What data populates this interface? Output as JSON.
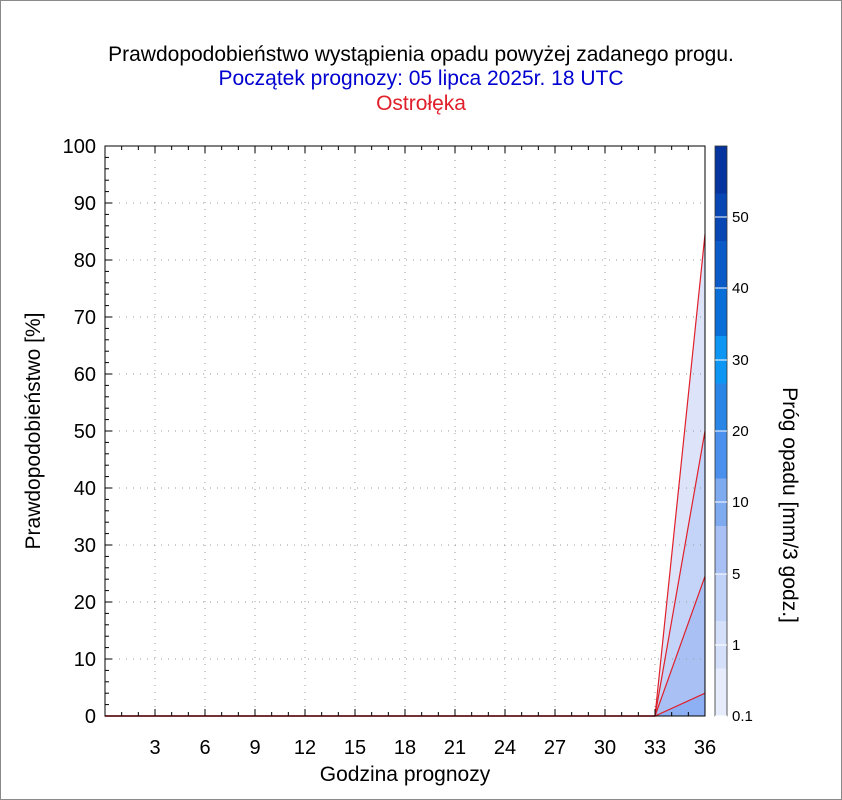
{
  "chart_data": {
    "type": "area",
    "title": "Prawdopodobieństwo wystąpienia opadu powyżej zadanego progu.",
    "subtitle": "Początek prognozy: 05 lipca 2025r. 18 UTC",
    "location": "Ostrołęka",
    "xlabel": "Godzina prognozy",
    "ylabel": "Prawdopodobieństwo [%]",
    "colorbar_label": "Próg opadu [mm/3 godz.]",
    "xlim": [
      0,
      36
    ],
    "ylim": [
      0,
      100
    ],
    "xticks": [
      3,
      6,
      9,
      12,
      15,
      18,
      21,
      24,
      27,
      30,
      33,
      36
    ],
    "yticks": [
      0,
      10,
      20,
      30,
      40,
      50,
      60,
      70,
      80,
      90,
      100
    ],
    "grid": true,
    "x": [
      0,
      3,
      6,
      9,
      12,
      15,
      18,
      21,
      24,
      27,
      30,
      33,
      36
    ],
    "series": [
      {
        "threshold": "0.1",
        "color": "#dde4fa",
        "values": [
          0,
          0,
          0,
          0,
          0,
          0,
          0,
          0,
          0,
          0,
          0,
          0,
          84.5
        ]
      },
      {
        "threshold": "1",
        "color": "#c4d4f8",
        "values": [
          0,
          0,
          0,
          0,
          0,
          0,
          0,
          0,
          0,
          0,
          0,
          0,
          50
        ]
      },
      {
        "threshold": "5",
        "color": "#a8c0f4",
        "values": [
          0,
          0,
          0,
          0,
          0,
          0,
          0,
          0,
          0,
          0,
          0,
          0,
          24.5
        ]
      },
      {
        "threshold": "10",
        "color": "#8db0f4",
        "values": [
          0,
          0,
          0,
          0,
          0,
          0,
          0,
          0,
          0,
          0,
          0,
          0,
          4
        ]
      }
    ],
    "colorbar": {
      "labels": [
        "0.1",
        "1",
        "5",
        "10",
        "20",
        "30",
        "40",
        "50"
      ],
      "colors": [
        "#e6ecfb",
        "#d4e0fa",
        "#c0d2f8",
        "#a8c0f4",
        "#7eaaf0",
        "#4a90ec",
        "#2a86e6",
        "#0e96f4",
        "#0a6ed8",
        "#0a5ac8",
        "#0846b4",
        "#06349e"
      ]
    }
  }
}
